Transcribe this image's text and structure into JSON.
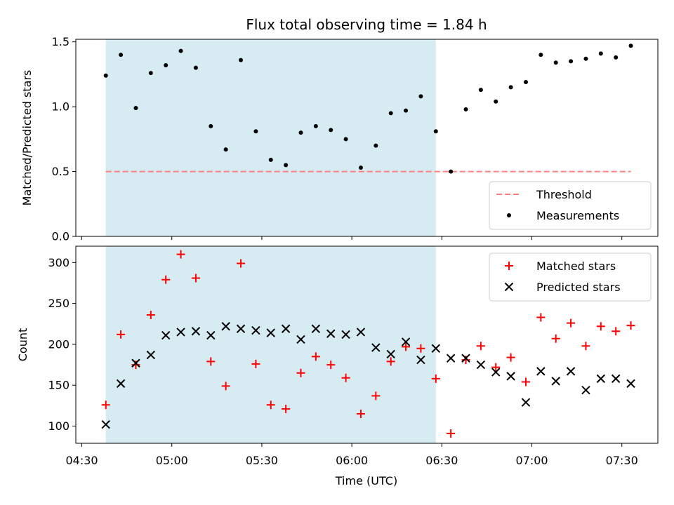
{
  "chart_data": {
    "type": "scatter",
    "title": "Flux total observing time = 1.84 h",
    "shaded_interval": {
      "start": "04:38",
      "end": "06:28",
      "color": "#add8e6"
    },
    "x_axis": {
      "label": "Time (UTC)",
      "range": [
        "04:28",
        "07:42"
      ],
      "ticks": [
        "04:30",
        "05:00",
        "05:30",
        "06:00",
        "06:30",
        "07:00",
        "07:30"
      ]
    },
    "panels": [
      {
        "ylabel": "Matched/Predicted stars",
        "ylim": [
          0,
          1.52
        ],
        "yticks": [
          "0.0",
          "0.5",
          "1.0",
          "1.5"
        ],
        "legend_position": "lower right",
        "series": [
          {
            "name": "Threshold",
            "kind": "dashed-line",
            "color": "#ff7f7f",
            "y": 0.5,
            "x_start": "04:38",
            "x_end": "07:33"
          },
          {
            "name": "Measurements",
            "kind": "dot",
            "color": "#000000",
            "points": [
              [
                "04:38",
                1.24
              ],
              [
                "04:43",
                1.4
              ],
              [
                "04:48",
                0.99
              ],
              [
                "04:53",
                1.26
              ],
              [
                "04:58",
                1.32
              ],
              [
                "05:03",
                1.43
              ],
              [
                "05:08",
                1.3
              ],
              [
                "05:13",
                0.85
              ],
              [
                "05:18",
                0.67
              ],
              [
                "05:23",
                1.36
              ],
              [
                "05:28",
                0.81
              ],
              [
                "05:33",
                0.59
              ],
              [
                "05:38",
                0.55
              ],
              [
                "05:43",
                0.8
              ],
              [
                "05:48",
                0.85
              ],
              [
                "05:53",
                0.82
              ],
              [
                "05:58",
                0.75
              ],
              [
                "06:03",
                0.53
              ],
              [
                "06:08",
                0.7
              ],
              [
                "06:13",
                0.95
              ],
              [
                "06:18",
                0.97
              ],
              [
                "06:23",
                1.08
              ],
              [
                "06:28",
                0.81
              ],
              [
                "06:33",
                0.5
              ],
              [
                "06:38",
                0.98
              ],
              [
                "06:43",
                1.13
              ],
              [
                "06:48",
                1.04
              ],
              [
                "06:53",
                1.15
              ],
              [
                "06:58",
                1.19
              ],
              [
                "07:03",
                1.4
              ],
              [
                "07:08",
                1.34
              ],
              [
                "07:13",
                1.35
              ],
              [
                "07:18",
                1.37
              ],
              [
                "07:23",
                1.41
              ],
              [
                "07:28",
                1.38
              ],
              [
                "07:33",
                1.47
              ]
            ]
          }
        ]
      },
      {
        "ylabel": "Count",
        "ylim": [
          79,
          320
        ],
        "yticks": [
          "100",
          "150",
          "200",
          "250",
          "300"
        ],
        "legend_position": "upper right",
        "series": [
          {
            "name": "Matched stars",
            "kind": "plus",
            "color": "#ff0000",
            "points": [
              [
                "04:38",
                126
              ],
              [
                "04:43",
                212
              ],
              [
                "04:48",
                175
              ],
              [
                "04:53",
                236
              ],
              [
                "04:58",
                279
              ],
              [
                "05:03",
                310
              ],
              [
                "05:08",
                281
              ],
              [
                "05:13",
                179
              ],
              [
                "05:18",
                149
              ],
              [
                "05:23",
                299
              ],
              [
                "05:28",
                176
              ],
              [
                "05:33",
                126
              ],
              [
                "05:38",
                121
              ],
              [
                "05:43",
                165
              ],
              [
                "05:48",
                185
              ],
              [
                "05:53",
                175
              ],
              [
                "05:58",
                159
              ],
              [
                "06:03",
                115
              ],
              [
                "06:08",
                137
              ],
              [
                "06:13",
                179
              ],
              [
                "06:18",
                197
              ],
              [
                "06:23",
                195
              ],
              [
                "06:28",
                158
              ],
              [
                "06:33",
                91
              ],
              [
                "06:38",
                181
              ],
              [
                "06:43",
                198
              ],
              [
                "06:48",
                172
              ],
              [
                "06:53",
                184
              ],
              [
                "06:58",
                154
              ],
              [
                "07:03",
                233
              ],
              [
                "07:08",
                207
              ],
              [
                "07:13",
                226
              ],
              [
                "07:18",
                198
              ],
              [
                "07:23",
                222
              ],
              [
                "07:28",
                216
              ],
              [
                "07:33",
                223
              ]
            ]
          },
          {
            "name": "Predicted stars",
            "kind": "cross",
            "color": "#000000",
            "points": [
              [
                "04:38",
                102
              ],
              [
                "04:43",
                152
              ],
              [
                "04:48",
                177
              ],
              [
                "04:53",
                187
              ],
              [
                "04:58",
                211
              ],
              [
                "05:03",
                215
              ],
              [
                "05:08",
                216
              ],
              [
                "05:13",
                211
              ],
              [
                "05:18",
                222
              ],
              [
                "05:23",
                219
              ],
              [
                "05:28",
                217
              ],
              [
                "05:33",
                214
              ],
              [
                "05:38",
                219
              ],
              [
                "05:43",
                206
              ],
              [
                "05:48",
                219
              ],
              [
                "05:53",
                213
              ],
              [
                "05:58",
                212
              ],
              [
                "06:03",
                215
              ],
              [
                "06:08",
                196
              ],
              [
                "06:13",
                188
              ],
              [
                "06:18",
                203
              ],
              [
                "06:23",
                181
              ],
              [
                "06:28",
                195
              ],
              [
                "06:33",
                183
              ],
              [
                "06:38",
                183
              ],
              [
                "06:43",
                175
              ],
              [
                "06:48",
                166
              ],
              [
                "06:53",
                161
              ],
              [
                "06:58",
                129
              ],
              [
                "07:03",
                167
              ],
              [
                "07:08",
                155
              ],
              [
                "07:13",
                167
              ],
              [
                "07:18",
                144
              ],
              [
                "07:23",
                158
              ],
              [
                "07:28",
                158
              ],
              [
                "07:33",
                152
              ]
            ]
          }
        ]
      }
    ]
  }
}
